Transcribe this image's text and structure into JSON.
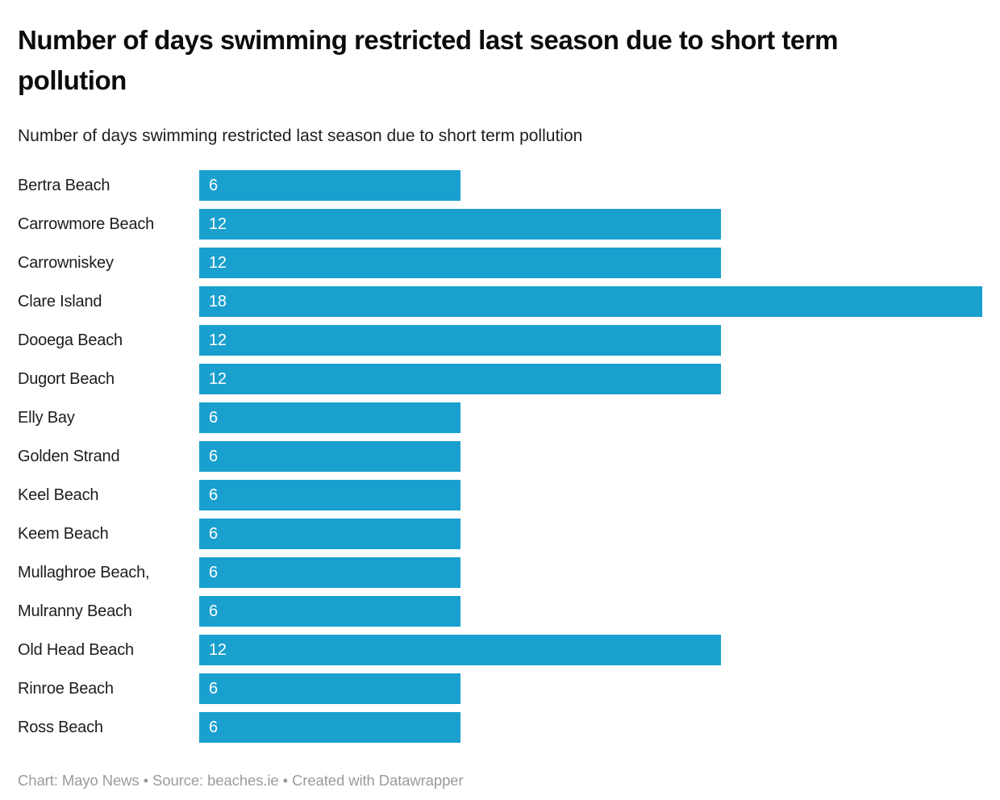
{
  "header": {
    "title": "Number of days swimming restricted last season due to short term pollution",
    "subtitle": "Number of days swimming restricted last season due to short term pollution"
  },
  "footer": {
    "text": "Chart: Mayo News • Source: beaches.ie • Created with Datawrapper"
  },
  "colors": {
    "bar": "#1AA0CE",
    "title": "#0c0c0c",
    "subtitle": "#1e1e1e",
    "category_label": "#1d1d1d",
    "value_label": "#ffffff",
    "footer": "#9b9b9b",
    "background": "#ffffff"
  },
  "chart_data": {
    "type": "bar",
    "orientation": "horizontal",
    "title": "Number of days swimming restricted last season due to short term pollution",
    "subtitle": "Number of days swimming restricted last season due to short term pollution",
    "xlabel": "",
    "ylabel": "",
    "xlim": [
      0,
      18
    ],
    "grid": false,
    "legend": false,
    "value_labels_inside_bars": true,
    "categories": [
      "Bertra Beach",
      "Carrowmore Beach",
      "Carrowniskey",
      "Clare Island",
      "Dooega Beach",
      "Dugort Beach",
      "Elly Bay",
      "Golden Strand",
      "Keel Beach",
      "Keem Beach",
      "Mullaghroe Beach,",
      "Mulranny Beach",
      "Old Head Beach",
      "Rinroe Beach",
      "Ross Beach"
    ],
    "values": [
      6,
      12,
      12,
      18,
      12,
      12,
      6,
      6,
      6,
      6,
      6,
      6,
      12,
      6,
      6
    ]
  }
}
